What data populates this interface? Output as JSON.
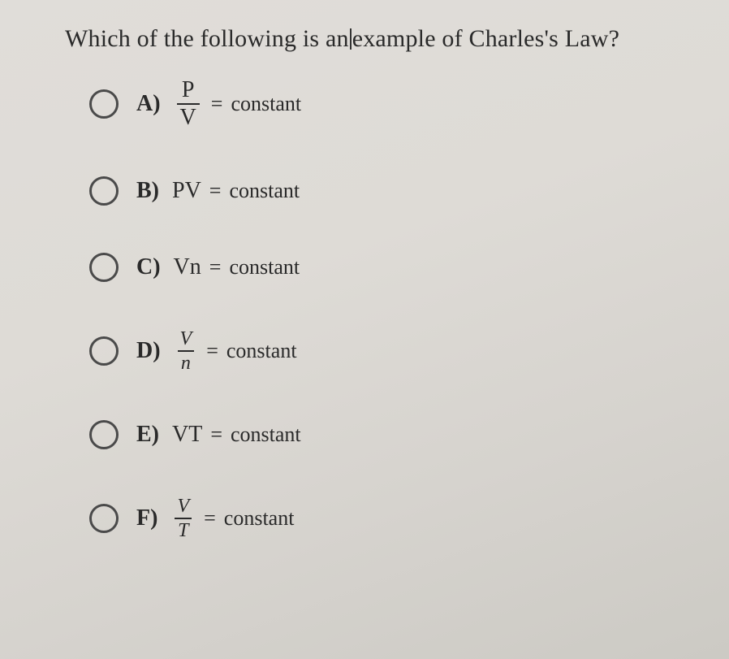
{
  "question": {
    "pre": "Which of the following is an",
    "post": "example of Charles's Law?"
  },
  "constant_label": "constant",
  "eq": "=",
  "options": {
    "a": {
      "letter": "A)",
      "num": "P",
      "den": "V"
    },
    "b": {
      "letter": "B)",
      "expr": "PV"
    },
    "c": {
      "letter": "C)",
      "expr": "Vn"
    },
    "d": {
      "letter": "D)",
      "num": "V",
      "den": "n"
    },
    "e": {
      "letter": "E)",
      "expr": "VT"
    },
    "f": {
      "letter": "F)",
      "num": "V",
      "den": "T"
    }
  },
  "colors": {
    "background": "#dcdad7",
    "text": "#2a2a2a",
    "radio_border": "#4a4a4a"
  },
  "typography": {
    "question_fontsize_pt": 22,
    "option_fontsize_pt": 21,
    "font_family": "Times New Roman / serif"
  }
}
